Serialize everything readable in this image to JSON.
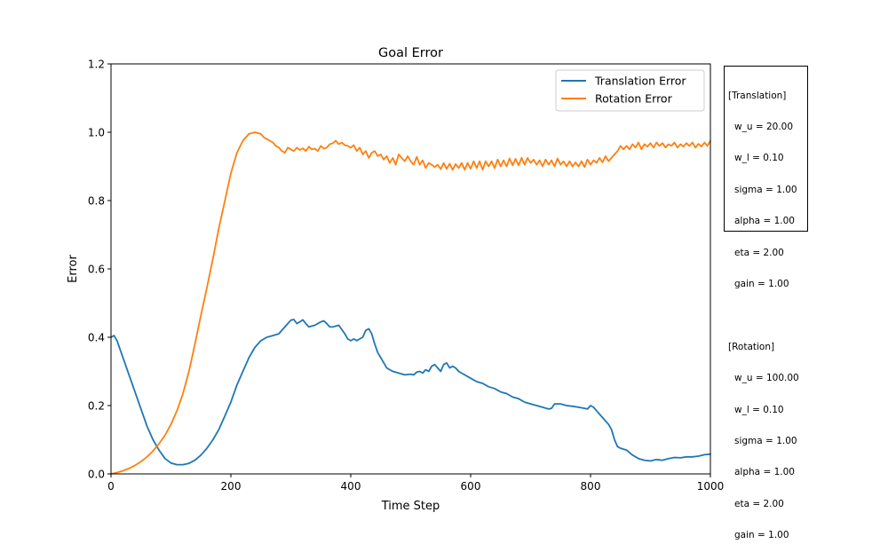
{
  "chart_data": {
    "type": "line",
    "title": "Goal Error",
    "xlabel": "Time Step",
    "ylabel": "Error",
    "xlim": [
      0,
      1000
    ],
    "ylim": [
      0,
      1.2
    ],
    "xticks": [
      0,
      200,
      400,
      600,
      800,
      1000
    ],
    "yticks": [
      0.0,
      0.2,
      0.4,
      0.6,
      0.8,
      1.0,
      1.2
    ],
    "xtick_labels": [
      "0",
      "200",
      "400",
      "600",
      "800",
      "1000"
    ],
    "ytick_labels": [
      "0.0",
      "0.2",
      "0.4",
      "0.6",
      "0.8",
      "1.0",
      "1.2"
    ],
    "grid": false,
    "legend_position": "top-right",
    "series": [
      {
        "name": "Translation Error",
        "color": "#1f77b4",
        "x": [
          0,
          5,
          10,
          20,
          30,
          40,
          50,
          60,
          70,
          80,
          90,
          100,
          110,
          120,
          130,
          140,
          150,
          160,
          170,
          180,
          190,
          200,
          210,
          220,
          230,
          240,
          250,
          260,
          270,
          280,
          290,
          300,
          305,
          310,
          315,
          320,
          325,
          330,
          340,
          350,
          355,
          360,
          365,
          370,
          380,
          390,
          395,
          400,
          405,
          410,
          415,
          420,
          425,
          430,
          435,
          440,
          445,
          450,
          460,
          470,
          480,
          490,
          500,
          505,
          510,
          515,
          520,
          525,
          530,
          535,
          540,
          545,
          550,
          555,
          560,
          565,
          570,
          575,
          580,
          590,
          600,
          610,
          620,
          630,
          640,
          650,
          660,
          670,
          680,
          690,
          700,
          710,
          720,
          730,
          735,
          740,
          745,
          750,
          760,
          770,
          780,
          790,
          795,
          800,
          805,
          810,
          820,
          830,
          835,
          840,
          845,
          850,
          860,
          870,
          880,
          890,
          900,
          910,
          920,
          930,
          940,
          950,
          960,
          970,
          980,
          990,
          1000
        ],
        "y": [
          0.4,
          0.405,
          0.39,
          0.34,
          0.29,
          0.24,
          0.19,
          0.14,
          0.1,
          0.07,
          0.045,
          0.032,
          0.027,
          0.027,
          0.031,
          0.04,
          0.055,
          0.075,
          0.1,
          0.13,
          0.17,
          0.21,
          0.26,
          0.3,
          0.34,
          0.37,
          0.39,
          0.4,
          0.405,
          0.41,
          0.43,
          0.45,
          0.452,
          0.44,
          0.445,
          0.451,
          0.44,
          0.43,
          0.435,
          0.445,
          0.448,
          0.44,
          0.43,
          0.43,
          0.435,
          0.41,
          0.395,
          0.39,
          0.395,
          0.39,
          0.395,
          0.4,
          0.42,
          0.425,
          0.41,
          0.38,
          0.355,
          0.34,
          0.31,
          0.3,
          0.295,
          0.29,
          0.292,
          0.29,
          0.298,
          0.3,
          0.295,
          0.305,
          0.3,
          0.315,
          0.32,
          0.31,
          0.3,
          0.32,
          0.325,
          0.31,
          0.315,
          0.31,
          0.3,
          0.29,
          0.28,
          0.27,
          0.265,
          0.255,
          0.25,
          0.24,
          0.235,
          0.225,
          0.22,
          0.21,
          0.205,
          0.2,
          0.195,
          0.19,
          0.192,
          0.205,
          0.205,
          0.205,
          0.2,
          0.198,
          0.195,
          0.192,
          0.19,
          0.2,
          0.195,
          0.185,
          0.165,
          0.145,
          0.13,
          0.1,
          0.08,
          0.075,
          0.07,
          0.055,
          0.045,
          0.04,
          0.038,
          0.042,
          0.04,
          0.045,
          0.048,
          0.047,
          0.05,
          0.05,
          0.052,
          0.056,
          0.058
        ]
      },
      {
        "name": "Rotation Error",
        "color": "#ff7f0e",
        "x": [
          0,
          10,
          20,
          30,
          40,
          50,
          60,
          70,
          80,
          90,
          100,
          110,
          120,
          130,
          140,
          150,
          160,
          170,
          180,
          190,
          200,
          210,
          220,
          230,
          240,
          250,
          255,
          260,
          265,
          270,
          275,
          280,
          285,
          290,
          295,
          300,
          305,
          310,
          315,
          320,
          325,
          330,
          335,
          340,
          345,
          350,
          355,
          360,
          365,
          370,
          375,
          380,
          385,
          390,
          395,
          400,
          405,
          410,
          415,
          420,
          425,
          430,
          435,
          440,
          445,
          450,
          455,
          460,
          465,
          470,
          475,
          480,
          485,
          490,
          495,
          500,
          505,
          510,
          515,
          520,
          525,
          530,
          535,
          540,
          545,
          550,
          555,
          560,
          565,
          570,
          575,
          580,
          585,
          590,
          595,
          600,
          605,
          610,
          615,
          620,
          625,
          630,
          635,
          640,
          645,
          650,
          655,
          660,
          665,
          670,
          675,
          680,
          685,
          690,
          695,
          700,
          705,
          710,
          715,
          720,
          725,
          730,
          735,
          740,
          745,
          750,
          755,
          760,
          765,
          770,
          775,
          780,
          785,
          790,
          795,
          800,
          805,
          810,
          815,
          820,
          825,
          830,
          835,
          840,
          845,
          850,
          855,
          860,
          865,
          870,
          875,
          880,
          885,
          890,
          895,
          900,
          905,
          910,
          915,
          920,
          925,
          930,
          935,
          940,
          945,
          950,
          955,
          960,
          965,
          970,
          975,
          980,
          985,
          990,
          995,
          1000
        ],
        "y": [
          0.0,
          0.004,
          0.009,
          0.016,
          0.025,
          0.036,
          0.05,
          0.067,
          0.088,
          0.113,
          0.145,
          0.185,
          0.235,
          0.3,
          0.38,
          0.465,
          0.545,
          0.63,
          0.72,
          0.8,
          0.88,
          0.94,
          0.975,
          0.995,
          1.0,
          0.995,
          0.985,
          0.98,
          0.975,
          0.97,
          0.96,
          0.955,
          0.945,
          0.94,
          0.955,
          0.95,
          0.945,
          0.955,
          0.948,
          0.953,
          0.945,
          0.958,
          0.95,
          0.952,
          0.945,
          0.96,
          0.952,
          0.955,
          0.965,
          0.968,
          0.975,
          0.965,
          0.97,
          0.962,
          0.96,
          0.955,
          0.962,
          0.945,
          0.955,
          0.935,
          0.945,
          0.925,
          0.94,
          0.945,
          0.93,
          0.935,
          0.92,
          0.93,
          0.91,
          0.925,
          0.905,
          0.935,
          0.925,
          0.915,
          0.93,
          0.915,
          0.905,
          0.928,
          0.905,
          0.918,
          0.895,
          0.91,
          0.905,
          0.898,
          0.905,
          0.892,
          0.91,
          0.893,
          0.908,
          0.89,
          0.907,
          0.895,
          0.91,
          0.89,
          0.91,
          0.893,
          0.915,
          0.895,
          0.915,
          0.89,
          0.915,
          0.9,
          0.915,
          0.895,
          0.92,
          0.9,
          0.918,
          0.9,
          0.923,
          0.903,
          0.922,
          0.903,
          0.925,
          0.905,
          0.925,
          0.91,
          0.92,
          0.905,
          0.918,
          0.9,
          0.92,
          0.905,
          0.918,
          0.9,
          0.923,
          0.905,
          0.915,
          0.9,
          0.915,
          0.9,
          0.912,
          0.9,
          0.915,
          0.898,
          0.92,
          0.905,
          0.918,
          0.91,
          0.925,
          0.912,
          0.93,
          0.915,
          0.925,
          0.935,
          0.945,
          0.96,
          0.95,
          0.96,
          0.95,
          0.965,
          0.955,
          0.97,
          0.95,
          0.965,
          0.958,
          0.968,
          0.955,
          0.97,
          0.96,
          0.968,
          0.955,
          0.965,
          0.96,
          0.97,
          0.955,
          0.965,
          0.958,
          0.968,
          0.96,
          0.97,
          0.955,
          0.966,
          0.958,
          0.97,
          0.96,
          0.975
        ]
      }
    ]
  },
  "params_box": {
    "sections": [
      {
        "header": "[Translation]",
        "lines": [
          "w_u = 20.00",
          "w_l = 0.10",
          "sigma = 1.00",
          "alpha = 1.00",
          "eta = 2.00",
          "gain = 1.00"
        ]
      },
      {
        "header": "[Rotation]",
        "lines": [
          "w_u = 100.00",
          "w_l = 0.10",
          "sigma = 1.00",
          "alpha = 1.00",
          "eta = 2.00",
          "gain = 1.00"
        ]
      }
    ]
  }
}
